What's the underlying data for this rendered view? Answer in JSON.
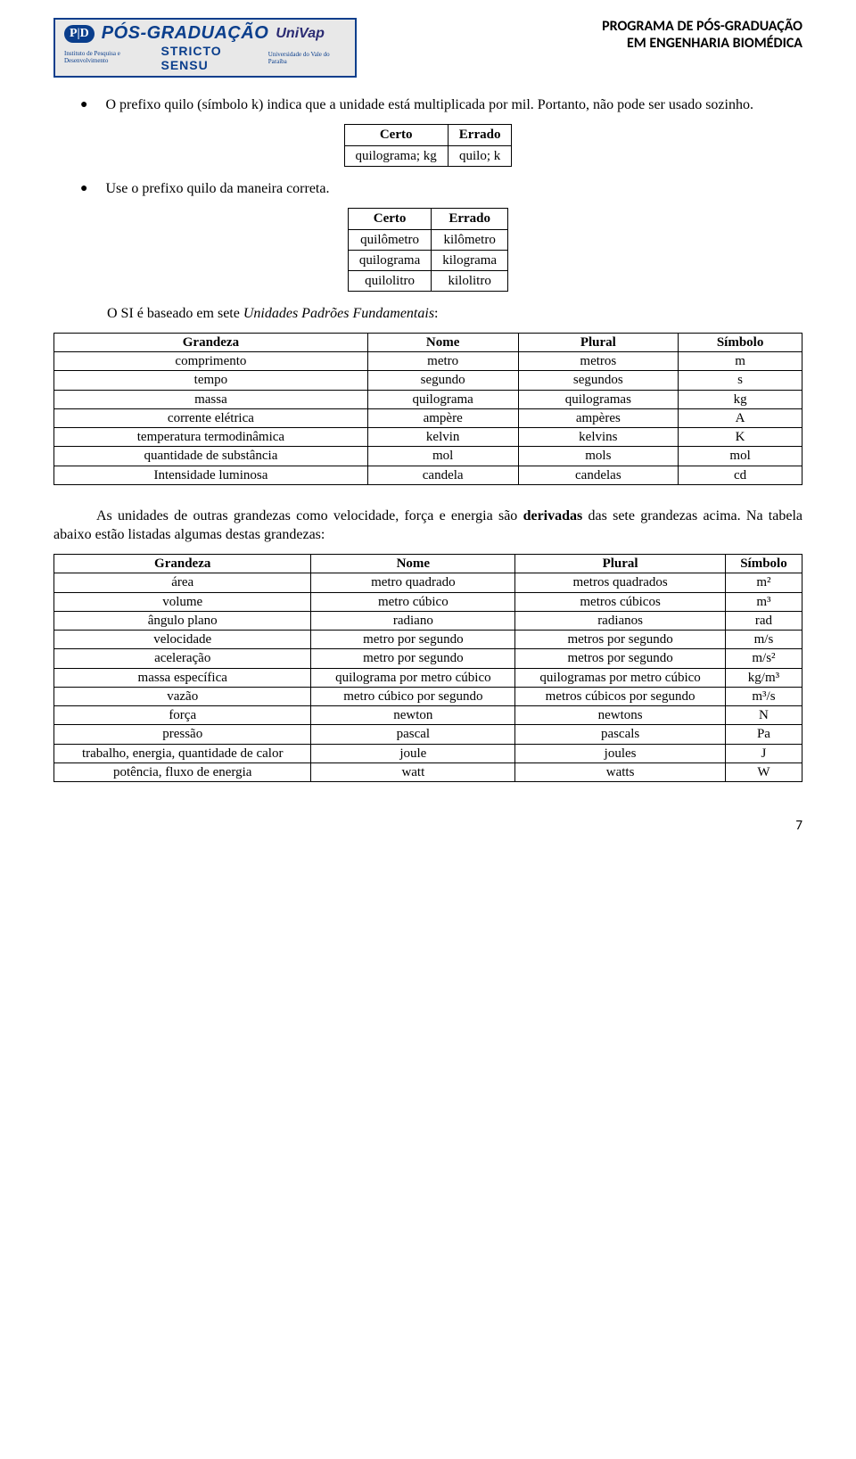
{
  "header": {
    "logo": {
      "pid": "P|D",
      "title": "PÓS-GRADUAÇÃO",
      "univap": "UniVap",
      "sub_left": "Instituto de Pesquisa\ne Desenvolvimento",
      "stricto": "STRICTO SENSU",
      "sub_right": "Universidade do Vale do Paraíba"
    },
    "right_line1": "PROGRAMA DE PÓS-GRADUAÇÃO",
    "right_line2": "EM ENGENHARIA BIOMÉDICA"
  },
  "bullets": {
    "b1": "O prefixo quilo (símbolo k) indica que a unidade está multiplicada por mil. Portanto, não pode ser usado sozinho.",
    "b2": "Use o prefixo quilo da maneira correta."
  },
  "table1": {
    "h1": "Certo",
    "h2": "Errado",
    "r1c1": "quilograma; kg",
    "r1c2": "quilo; k"
  },
  "table2": {
    "h1": "Certo",
    "h2": "Errado",
    "rows": [
      [
        "quilômetro",
        "kilômetro"
      ],
      [
        "quilograma",
        "kilograma"
      ],
      [
        "quilolitro",
        "kilolitro"
      ]
    ]
  },
  "si_intro_pre": "O SI é baseado em sete ",
  "si_intro_it": "Unidades Padrões Fundamentais",
  "si_intro_post": ":",
  "table3": {
    "headers": [
      "Grandeza",
      "Nome",
      "Plural",
      "Símbolo"
    ],
    "rows": [
      [
        "comprimento",
        "metro",
        "metros",
        "m"
      ],
      [
        "tempo",
        "segundo",
        "segundos",
        "s"
      ],
      [
        "massa",
        "quilograma",
        "quilogramas",
        "kg"
      ],
      [
        "corrente elétrica",
        "ampère",
        "ampères",
        "A"
      ],
      [
        "temperatura termodinâmica",
        "kelvin",
        "kelvins",
        "K"
      ],
      [
        "quantidade de substância",
        "mol",
        "mols",
        "mol"
      ],
      [
        "Intensidade luminosa",
        "candela",
        "candelas",
        "cd"
      ]
    ]
  },
  "para_pre": "As unidades de outras grandezas como velocidade, força e energia são ",
  "para_bold": "derivadas",
  "para_post": " das sete grandezas acima. Na tabela abaixo estão listadas algumas destas grandezas:",
  "table4": {
    "headers": [
      "Grandeza",
      "Nome",
      "Plural",
      "Símbolo"
    ],
    "rows": [
      [
        "área",
        "metro quadrado",
        "metros quadrados",
        "m²"
      ],
      [
        "volume",
        "metro cúbico",
        "metros cúbicos",
        "m³"
      ],
      [
        "ângulo plano",
        "radiano",
        "radianos",
        "rad"
      ],
      [
        "velocidade",
        "metro por segundo",
        "metros por segundo",
        "m/s"
      ],
      [
        "aceleração",
        "metro por segundo",
        "metros por segundo",
        "m/s²"
      ],
      [
        "massa específica",
        "quilograma por metro cúbico",
        "quilogramas por metro cúbico",
        "kg/m³"
      ],
      [
        "vazão",
        "metro cúbico por segundo",
        "metros cúbicos por segundo",
        "m³/s"
      ],
      [
        "força",
        "newton",
        "newtons",
        "N"
      ],
      [
        "pressão",
        "pascal",
        "pascals",
        "Pa"
      ],
      [
        "trabalho, energia, quantidade de calor",
        "joule",
        "joules",
        "J"
      ],
      [
        "potência, fluxo de energia",
        "watt",
        "watts",
        "W"
      ]
    ]
  },
  "page_number": "7"
}
